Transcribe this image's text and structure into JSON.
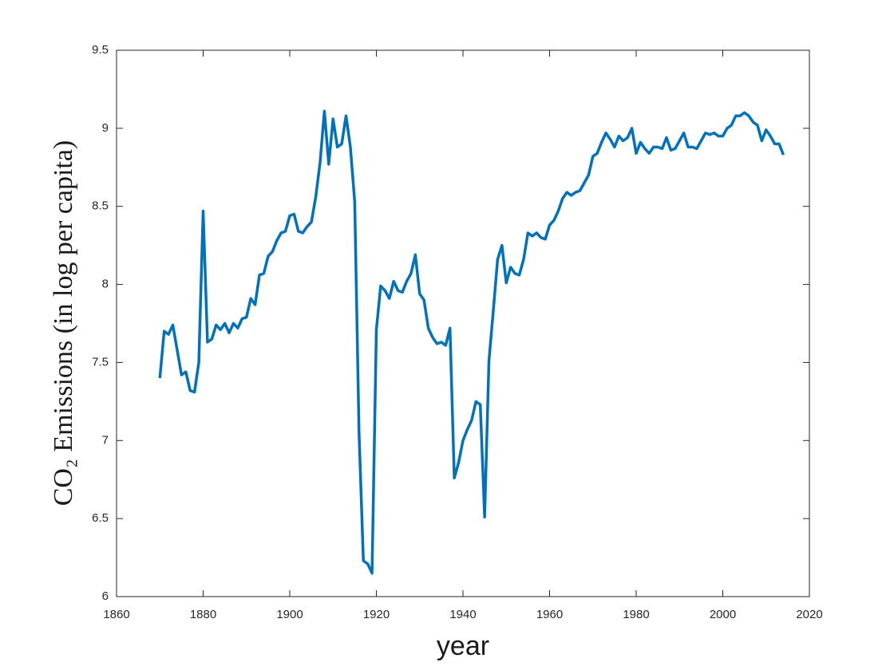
{
  "chart_data": {
    "type": "line",
    "xlabel": "year",
    "ylabel": "CO₂ Emissions (in log per capita)",
    "xlim": [
      1860,
      2020
    ],
    "xticks": [
      1860,
      1880,
      1900,
      1920,
      1940,
      1960,
      1980,
      2000,
      2020
    ],
    "ylim": [
      6,
      9.5
    ],
    "yticks": [
      6,
      6.5,
      7,
      7.5,
      8,
      8.5,
      9,
      9.5
    ],
    "grid": false,
    "series": [
      {
        "color": "#0072bd",
        "x": [
          1870,
          1871,
          1872,
          1873,
          1874,
          1875,
          1876,
          1877,
          1878,
          1879,
          1880,
          1881,
          1882,
          1883,
          1884,
          1885,
          1886,
          1887,
          1888,
          1889,
          1890,
          1891,
          1892,
          1893,
          1894,
          1895,
          1896,
          1897,
          1898,
          1899,
          1900,
          1901,
          1902,
          1903,
          1904,
          1905,
          1906,
          1907,
          1908,
          1909,
          1910,
          1911,
          1912,
          1913,
          1914,
          1915,
          1916,
          1917,
          1918,
          1919,
          1920,
          1921,
          1922,
          1923,
          1924,
          1925,
          1926,
          1927,
          1928,
          1929,
          1930,
          1931,
          1932,
          1933,
          1934,
          1935,
          1936,
          1937,
          1938,
          1939,
          1940,
          1941,
          1942,
          1943,
          1944,
          1945,
          1946,
          1947,
          1948,
          1949,
          1950,
          1951,
          1952,
          1953,
          1954,
          1955,
          1956,
          1957,
          1958,
          1959,
          1960,
          1961,
          1962,
          1963,
          1964,
          1965,
          1966,
          1967,
          1968,
          1969,
          1970,
          1971,
          1972,
          1973,
          1974,
          1975,
          1976,
          1977,
          1978,
          1979,
          1980,
          1981,
          1982,
          1983,
          1984,
          1985,
          1986,
          1987,
          1988,
          1989,
          1990,
          1991,
          1992,
          1993,
          1994,
          1995,
          1996,
          1997,
          1998,
          1999,
          2000,
          2001,
          2002,
          2003,
          2004,
          2005,
          2006,
          2007,
          2008,
          2009,
          2010,
          2011,
          2012,
          2013,
          2014
        ],
        "values": [
          7.4,
          7.7,
          7.68,
          7.74,
          7.58,
          7.42,
          7.44,
          7.32,
          7.31,
          7.5,
          8.47,
          7.63,
          7.65,
          7.74,
          7.71,
          7.75,
          7.69,
          7.75,
          7.72,
          7.78,
          7.79,
          7.91,
          7.87,
          8.06,
          8.07,
          8.18,
          8.21,
          8.28,
          8.33,
          8.34,
          8.44,
          8.45,
          8.34,
          8.33,
          8.37,
          8.4,
          8.56,
          8.78,
          9.11,
          8.77,
          9.06,
          8.88,
          8.9,
          9.08,
          8.88,
          8.53,
          7.05,
          6.23,
          6.21,
          6.15,
          7.71,
          7.99,
          7.96,
          7.91,
          8.02,
          7.96,
          7.95,
          8.02,
          8.07,
          8.19,
          7.94,
          7.9,
          7.72,
          7.66,
          7.62,
          7.63,
          7.61,
          7.72,
          6.76,
          6.86,
          7.0,
          7.07,
          7.13,
          7.25,
          7.23,
          6.51,
          7.51,
          7.83,
          8.16,
          8.25,
          8.01,
          8.11,
          8.07,
          8.06,
          8.16,
          8.33,
          8.31,
          8.33,
          8.3,
          8.29,
          8.38,
          8.41,
          8.47,
          8.55,
          8.59,
          8.57,
          8.59,
          8.6,
          8.65,
          8.7,
          8.82,
          8.84,
          8.91,
          8.97,
          8.93,
          8.88,
          8.95,
          8.92,
          8.94,
          9.0,
          8.84,
          8.91,
          8.87,
          8.84,
          8.88,
          8.88,
          8.87,
          8.94,
          8.86,
          8.87,
          8.92,
          8.97,
          8.88,
          8.88,
          8.87,
          8.92,
          8.97,
          8.96,
          8.97,
          8.95,
          8.95,
          9.0,
          9.02,
          9.08,
          9.08,
          9.1,
          9.08,
          9.04,
          9.02,
          8.92,
          8.99,
          8.95,
          8.9,
          8.9,
          8.83
        ]
      }
    ]
  }
}
